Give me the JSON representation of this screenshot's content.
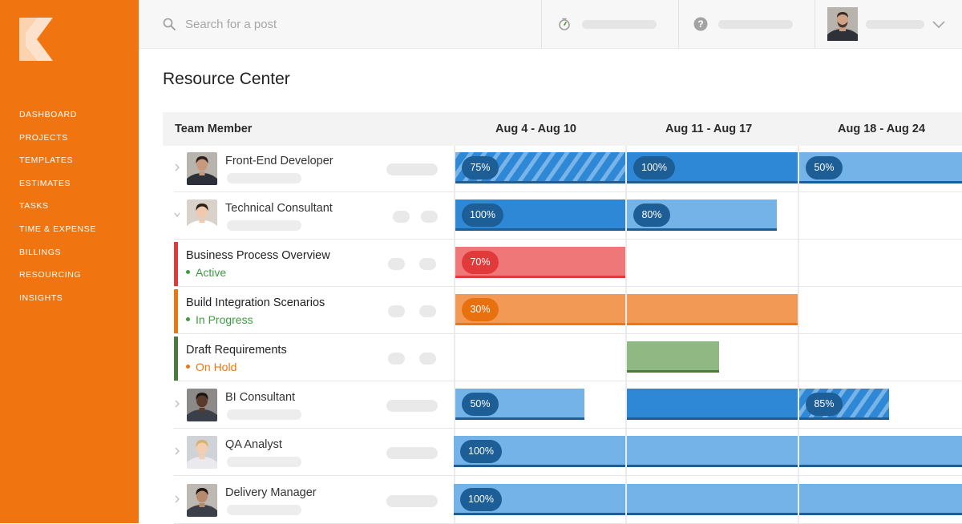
{
  "sidebar": {
    "nav": [
      "DASHBOARD",
      "PROJECTS",
      "TEMPLATES",
      "ESTIMATES",
      "TASKS",
      "TIME & EXPENSE",
      "BILLINGS",
      "RESOURCING",
      "INSIGHTS"
    ]
  },
  "topbar": {
    "search_placeholder": "Search for a post",
    "icons": [
      "search-icon",
      "stopwatch-icon",
      "help-icon",
      "chevron-down-icon"
    ]
  },
  "page": {
    "title": "Resource Center"
  },
  "table": {
    "header": {
      "member": "Team Member",
      "weeks": [
        "Aug 4 - Aug 10",
        "Aug 11 - Aug 17",
        "Aug 18 - Aug 24"
      ]
    },
    "members": [
      {
        "name": "Front-End Developer",
        "bars": [
          {
            "week": 0,
            "pct": "75%",
            "style": "hatched",
            "fill": 1.0
          },
          {
            "week": 1,
            "pct": "100%",
            "style": "solid",
            "fill": 1.0
          },
          {
            "week": 2,
            "pct": "50%",
            "style": "light",
            "fill": 1.0
          }
        ]
      },
      {
        "name": "Technical Consultant",
        "bars": [
          {
            "week": 0,
            "pct": "100%",
            "style": "solid",
            "fill": 1.0
          },
          {
            "week": 1,
            "pct": "80%",
            "style": "light",
            "fill": 0.88
          }
        ]
      },
      {
        "name": "BI Consultant",
        "bars": [
          {
            "week": 0,
            "pct": "50%",
            "style": "light",
            "fill": 0.76
          },
          {
            "week": 1,
            "pct": "",
            "style": "solid",
            "fill": 1.0
          },
          {
            "week": 2,
            "pct": "85%",
            "style": "hatched",
            "fill": 0.55
          }
        ]
      },
      {
        "name": "QA Analyst",
        "bars": [
          {
            "week": 0,
            "pct": "100%",
            "style": "light",
            "fill": 1.0
          },
          {
            "week": 1,
            "pct": "",
            "style": "light",
            "fill": 1.0
          },
          {
            "week": 2,
            "pct": "",
            "style": "light",
            "fill": 1.0
          }
        ]
      },
      {
        "name": "Delivery Manager",
        "bars": [
          {
            "week": 0,
            "pct": "100%",
            "style": "light",
            "fill": 1.0
          },
          {
            "week": 1,
            "pct": "",
            "style": "light",
            "fill": 1.0
          },
          {
            "week": 2,
            "pct": "",
            "style": "light",
            "fill": 1.0
          }
        ]
      }
    ],
    "tasks": [
      {
        "name": "Business Process Overview",
        "status": "Active",
        "status_color": "#3e9b3e",
        "accent": "#e23a3a"
      },
      {
        "name": "Build Integration Scenarios",
        "status": "In Progress",
        "status_color": "#3e9b3e",
        "accent": "#f07511"
      },
      {
        "name": "Draft Requirements",
        "status": "On Hold",
        "status_color": "#f07511",
        "accent": "#4b7a3e"
      }
    ],
    "task_bars": [
      {
        "pct": "70%",
        "color": "#ef7777",
        "under": "#e23a3a",
        "badge": "#e23a3a"
      },
      {
        "pct": "30%",
        "color": "#f29a55",
        "under": "#f07511",
        "badge": "#e8700f"
      },
      {
        "pct": "",
        "color": "#8fb882",
        "under": "#4b7a3e",
        "badge": ""
      }
    ]
  },
  "colors": {
    "brand": "#f07511",
    "solid_blue": "#2f88d6",
    "light_blue": "#74b3e8",
    "badge_blue": "#1d5e96",
    "underline_blue": "#1d5e96"
  }
}
